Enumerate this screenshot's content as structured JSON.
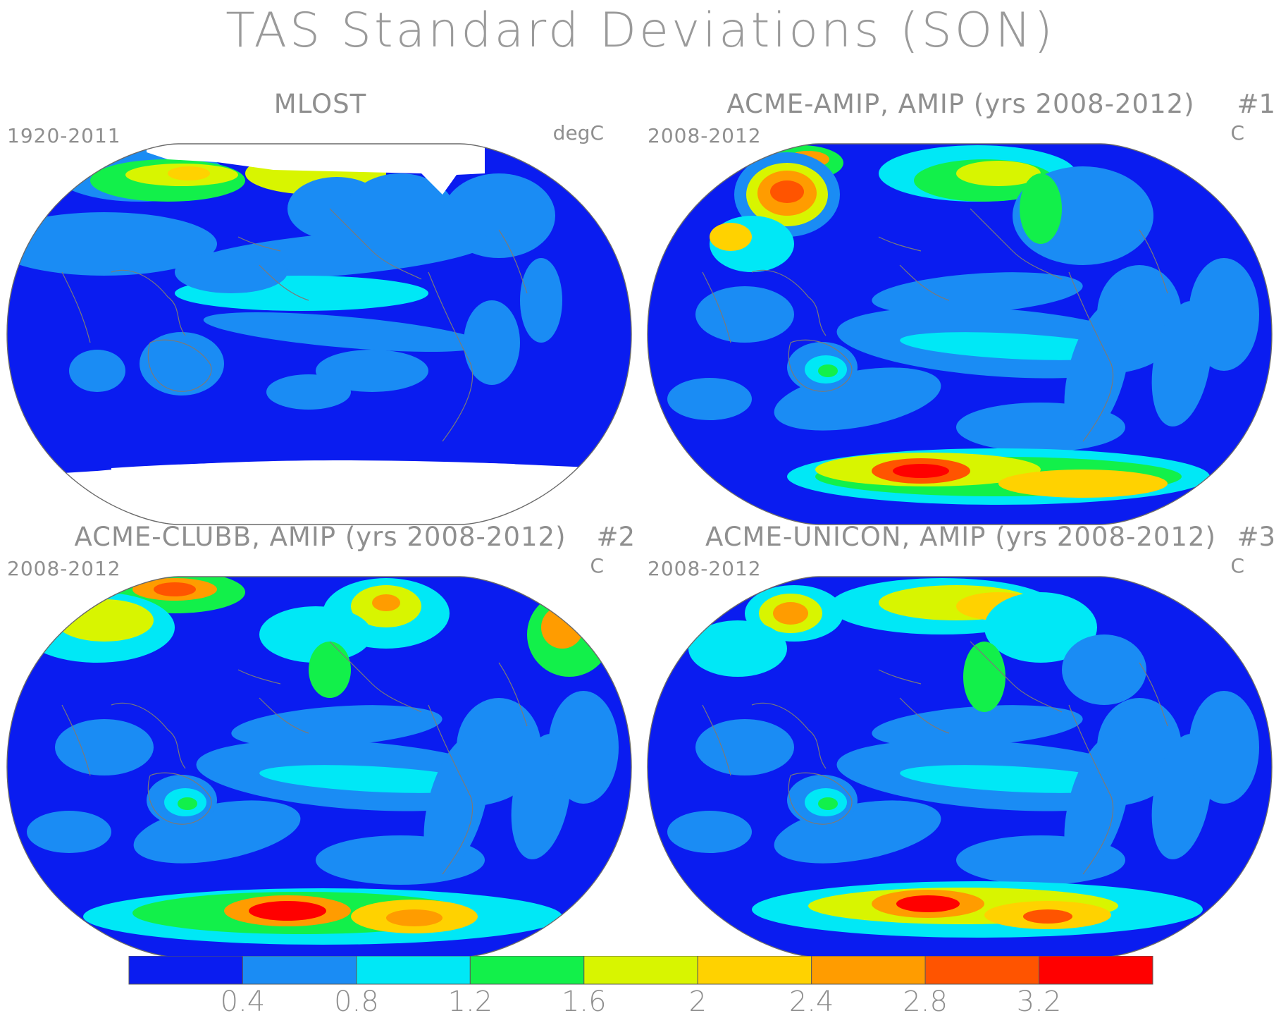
{
  "title": "TAS Standard Deviations (SON)",
  "panels": [
    {
      "title": "MLOST",
      "number": "",
      "left": "1920-2011",
      "right": "degC",
      "pattern": "obs"
    },
    {
      "title": "ACME-AMIP, AMIP (yrs 2008-2012)",
      "number": "#1",
      "left": "2008-2012",
      "right": "C",
      "pattern": "amip"
    },
    {
      "title": "ACME-CLUBB, AMIP (yrs 2008-2012)",
      "number": "#2",
      "left": "2008-2012",
      "right": "C",
      "pattern": "clubb"
    },
    {
      "title": "ACME-UNICON, AMIP (yrs 2008-2012)",
      "number": "#3",
      "left": "2008-2012",
      "right": "C",
      "pattern": "unicon"
    }
  ],
  "colorbar": {
    "colors": [
      "#0a1cf0",
      "#1a8cf4",
      "#00e8f6",
      "#12f04a",
      "#d8f500",
      "#ffd200",
      "#ff9c00",
      "#ff5400",
      "#ff0000"
    ],
    "labels": [
      "0.4",
      "0.8",
      "1.2",
      "1.6",
      "2",
      "2.4",
      "2.8",
      "3.2"
    ]
  },
  "chart_data": {
    "type": "heatmap",
    "title": "TAS Standard Deviations (SON)",
    "levels": [
      0.4,
      0.8,
      1.2,
      1.6,
      2.0,
      2.4,
      2.8,
      3.2
    ],
    "panels": [
      "MLOST",
      "ACME-AMIP, AMIP (yrs 2008-2012)",
      "ACME-CLUBB, AMIP (yrs 2008-2012)",
      "ACME-UNICON, AMIP (yrs 2008-2012)"
    ]
  }
}
